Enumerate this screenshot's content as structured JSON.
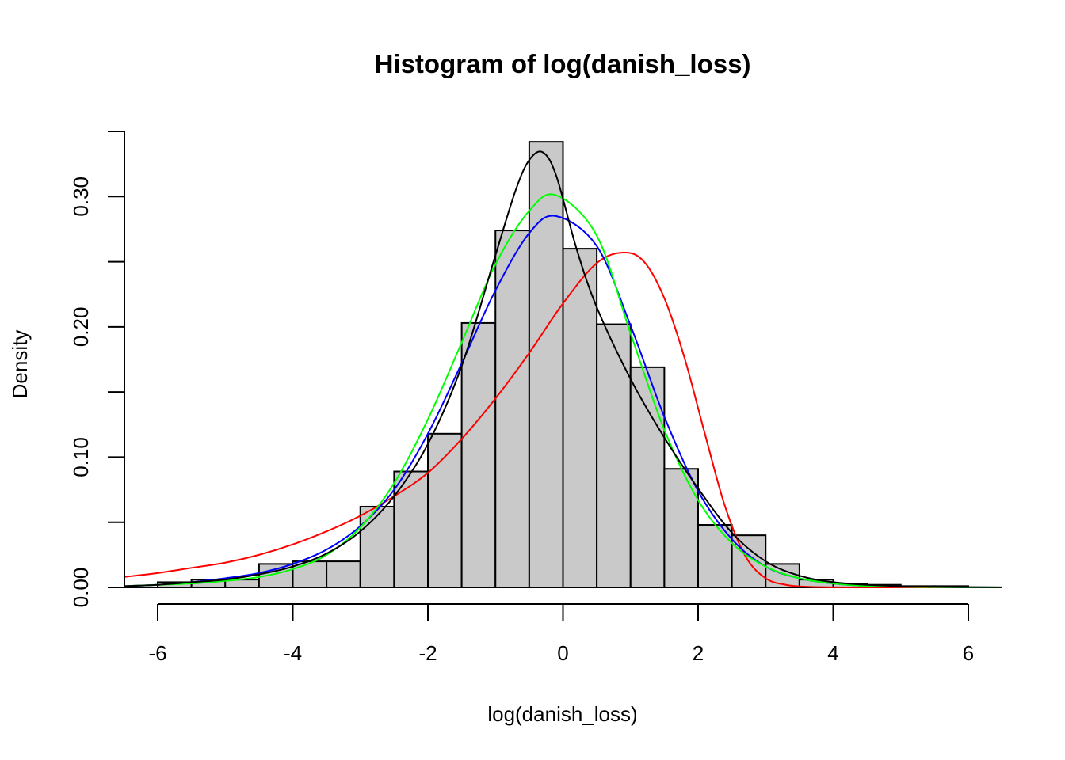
{
  "chart_data": {
    "type": "bar",
    "title": "Histogram of log(danish_loss)",
    "xlabel": "log(danish_loss)",
    "ylabel": "Density",
    "xlim": [
      -6.5,
      6.5
    ],
    "ylim": [
      0,
      0.35
    ],
    "x_ticks": [
      -6,
      -4,
      -2,
      0,
      2,
      4,
      6
    ],
    "x_tick_labels": [
      "-6",
      "-4",
      "-2",
      "0",
      "2",
      "4",
      "6"
    ],
    "y_ticks": [
      0,
      0.05,
      0.1,
      0.15,
      0.2,
      0.25,
      0.3,
      0.35
    ],
    "y_tick_labels": [
      "0.00",
      "",
      "0.10",
      "",
      "0.20",
      "",
      "0.30",
      ""
    ],
    "bins": {
      "breaks": [
        -6,
        -5.5,
        -5,
        -4.5,
        -4,
        -3.5,
        -3,
        -2.5,
        -2,
        -1.5,
        -1,
        -0.5,
        0,
        0.5,
        1,
        1.5,
        2,
        2.5,
        3,
        3.5,
        4,
        4.5,
        5,
        5.5,
        6
      ],
      "density": [
        0.004,
        0.006,
        0.006,
        0.018,
        0.02,
        0.02,
        0.062,
        0.089,
        0.118,
        0.203,
        0.274,
        0.342,
        0.26,
        0.202,
        0.169,
        0.091,
        0.048,
        0.04,
        0.018,
        0.006,
        0.003,
        0.002,
        0.001,
        0.001
      ]
    },
    "bar_color": "#c9c9c9",
    "series": [
      {
        "name": "red-curve",
        "color": "#ff0000",
        "x": [
          -6.5,
          -6,
          -5.5,
          -5,
          -4.5,
          -4,
          -3.5,
          -3,
          -2.5,
          -2,
          -1.5,
          -1,
          -0.5,
          0,
          0.5,
          0.9,
          1.2,
          1.5,
          1.8,
          2.1,
          2.4,
          2.7,
          3,
          3.3,
          3.6,
          4,
          5,
          6.5
        ],
        "values": [
          0.008,
          0.011,
          0.015,
          0.019,
          0.025,
          0.033,
          0.043,
          0.055,
          0.07,
          0.088,
          0.114,
          0.145,
          0.18,
          0.218,
          0.249,
          0.257,
          0.25,
          0.222,
          0.176,
          0.118,
          0.062,
          0.024,
          0.007,
          0.002,
          0.0005,
          0.0001,
          0,
          0
        ]
      },
      {
        "name": "blue-curve",
        "color": "#0000ff",
        "x": [
          -6.5,
          -6,
          -5.5,
          -5,
          -4.5,
          -4,
          -3.5,
          -3,
          -2.5,
          -2,
          -1.5,
          -1,
          -0.5,
          -0.1,
          0.5,
          1,
          1.5,
          2,
          2.5,
          3,
          3.5,
          4,
          4.5,
          5,
          5.5,
          6,
          6.5
        ],
        "values": [
          0.001,
          0.002,
          0.004,
          0.007,
          0.011,
          0.018,
          0.029,
          0.047,
          0.075,
          0.118,
          0.172,
          0.228,
          0.272,
          0.285,
          0.262,
          0.201,
          0.131,
          0.074,
          0.037,
          0.016,
          0.007,
          0.003,
          0.001,
          0.0005,
          0.0002,
          0.0001,
          0
        ]
      },
      {
        "name": "green-curve",
        "color": "#00ff00",
        "x": [
          -6.5,
          -6,
          -5.5,
          -5,
          -4.5,
          -4,
          -3.5,
          -3,
          -2.5,
          -2,
          -1.5,
          -1,
          -0.5,
          -0.1,
          0.5,
          1,
          1.5,
          2,
          2.5,
          3,
          3.5,
          4,
          4.5,
          5,
          5.5,
          6,
          6.5
        ],
        "values": [
          0.001,
          0.002,
          0.003,
          0.005,
          0.008,
          0.014,
          0.025,
          0.046,
          0.08,
          0.129,
          0.188,
          0.248,
          0.289,
          0.301,
          0.27,
          0.195,
          0.121,
          0.067,
          0.034,
          0.016,
          0.007,
          0.003,
          0.001,
          0.0005,
          0.0002,
          0.0001,
          0
        ]
      },
      {
        "name": "black-curve",
        "color": "#000000",
        "x": [
          -6.5,
          -6,
          -5.5,
          -5,
          -4.5,
          -4,
          -3.5,
          -3,
          -2.5,
          -2,
          -1.5,
          -1,
          -0.7,
          -0.5,
          -0.3,
          -0.1,
          0.2,
          0.5,
          1,
          1.5,
          2,
          2.5,
          3,
          3.5,
          4,
          4.5,
          5,
          5.5,
          6,
          6.5
        ],
        "values": [
          0.001,
          0.002,
          0.004,
          0.006,
          0.01,
          0.016,
          0.026,
          0.043,
          0.07,
          0.11,
          0.17,
          0.255,
          0.305,
          0.328,
          0.334,
          0.316,
          0.26,
          0.215,
          0.16,
          0.115,
          0.076,
          0.042,
          0.02,
          0.009,
          0.004,
          0.002,
          0.001,
          0.0005,
          0.0002,
          0.0001
        ]
      }
    ]
  }
}
